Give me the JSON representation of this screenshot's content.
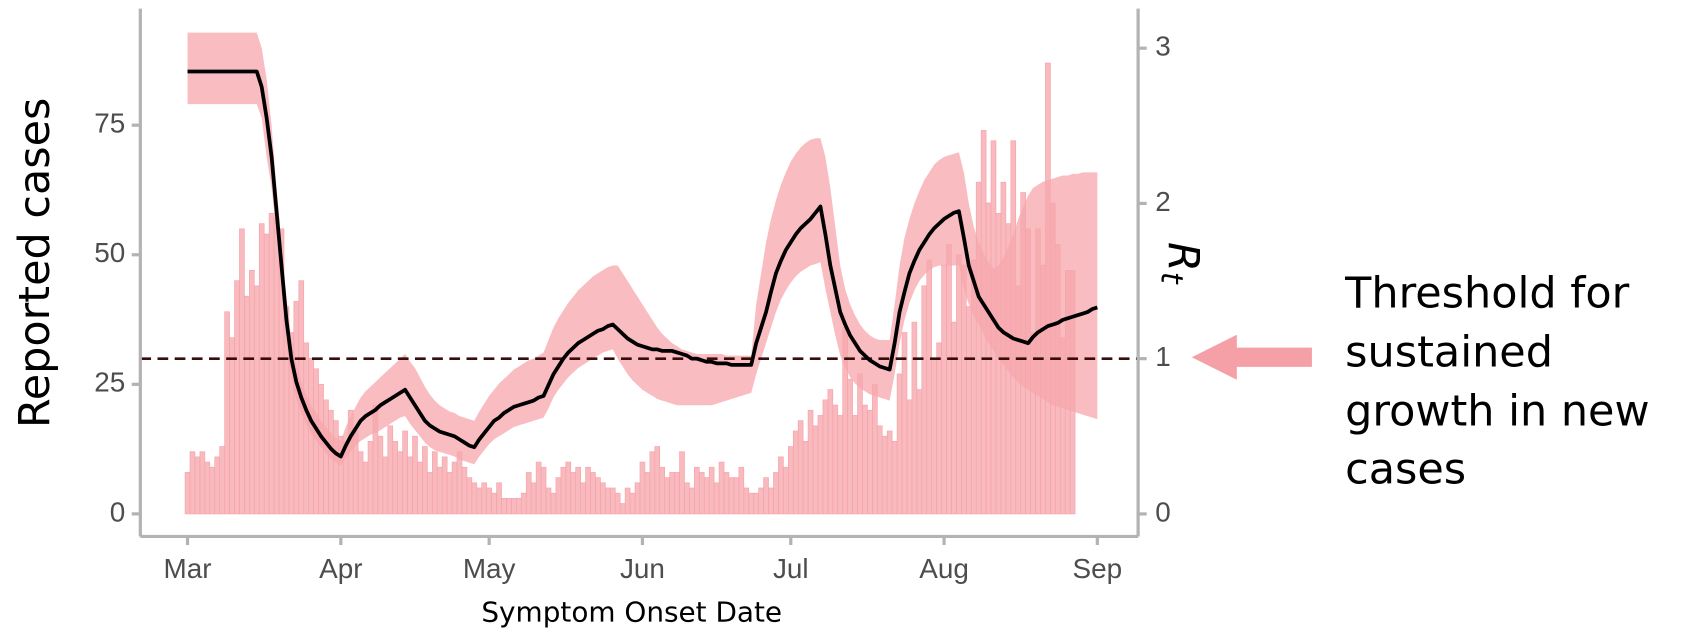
{
  "chart_data": {
    "type": "bar",
    "xlabel": "Symptom Onset Date",
    "ylabel": "Reported cases",
    "y2label": [
      "R",
      "t"
    ],
    "annotation": [
      "Threshold for",
      "sustained",
      "growth in new",
      "cases"
    ],
    "ylim": [
      -4.35,
      97.5
    ],
    "yticks": [
      0,
      25,
      50,
      75
    ],
    "y2lim": [
      -0.145,
      3.255
    ],
    "y2ticks": [
      0,
      1,
      2,
      3
    ],
    "threshold": 1,
    "categories": [
      "Mar",
      null,
      null,
      null,
      null,
      null,
      null,
      null,
      null,
      null,
      null,
      null,
      null,
      null,
      null,
      null,
      null,
      null,
      null,
      null,
      null,
      null,
      null,
      null,
      null,
      null,
      null,
      null,
      null,
      null,
      null,
      "Apr",
      null,
      null,
      null,
      null,
      null,
      null,
      null,
      null,
      null,
      null,
      null,
      null,
      null,
      null,
      null,
      null,
      null,
      null,
      null,
      null,
      null,
      null,
      null,
      null,
      null,
      null,
      null,
      null,
      null,
      "May",
      null,
      null,
      null,
      null,
      null,
      null,
      null,
      null,
      null,
      null,
      null,
      null,
      null,
      null,
      null,
      null,
      null,
      null,
      null,
      null,
      null,
      null,
      null,
      null,
      null,
      null,
      null,
      null,
      null,
      null,
      "Jun",
      null,
      null,
      null,
      null,
      null,
      null,
      null,
      null,
      null,
      null,
      null,
      null,
      null,
      null,
      null,
      null,
      null,
      null,
      null,
      null,
      null,
      null,
      null,
      null,
      null,
      null,
      null,
      null,
      null,
      "Jul",
      null,
      null,
      null,
      null,
      null,
      null,
      null,
      null,
      null,
      null,
      null,
      null,
      null,
      null,
      null,
      null,
      null,
      null,
      null,
      null,
      null,
      null,
      null,
      null,
      null,
      null,
      null,
      null,
      null,
      null,
      "Aug",
      null,
      null,
      null,
      null,
      null,
      null,
      null,
      null,
      null,
      null,
      null,
      null,
      null,
      null,
      null,
      null,
      null,
      null,
      null,
      null,
      null,
      null,
      null,
      null,
      null,
      null,
      null,
      null,
      null,
      null,
      "Sep"
    ],
    "series": [
      {
        "type": "bar",
        "color": "#f6a3a8",
        "values": [
          8,
          12,
          11,
          12,
          10,
          9,
          11,
          13,
          39,
          34,
          45,
          55,
          42,
          47,
          44,
          56,
          54,
          58,
          57,
          55,
          40,
          35,
          41,
          45,
          33,
          30,
          28,
          25,
          22,
          20,
          18,
          15,
          14,
          20,
          16,
          12,
          10,
          14,
          21,
          15,
          11,
          17,
          14,
          12,
          16,
          11,
          15,
          10,
          13,
          8,
          12,
          9,
          11,
          8,
          10,
          12,
          9,
          7,
          6,
          5,
          6,
          5,
          4,
          6,
          3,
          3,
          3,
          3,
          4,
          8,
          6,
          10,
          9,
          5,
          4,
          7,
          9,
          10,
          8,
          9,
          6,
          9,
          8,
          7,
          6,
          5,
          5,
          4,
          2,
          5,
          4,
          6,
          10,
          8,
          12,
          13,
          9,
          7,
          8,
          8,
          12,
          6,
          5,
          9,
          8,
          7,
          9,
          6,
          10,
          8,
          7,
          7,
          9,
          5,
          4,
          4,
          5,
          7,
          5,
          8,
          11,
          9,
          13,
          16,
          18,
          14,
          20,
          17,
          19,
          22,
          24,
          21,
          19,
          36,
          26,
          19,
          27,
          21,
          20,
          25,
          17,
          15,
          16,
          14,
          27,
          35,
          22,
          37,
          24,
          44,
          49,
          30,
          33,
          48,
          52,
          37,
          50,
          48,
          40,
          49,
          64,
          74,
          60,
          72,
          58,
          64,
          56,
          72,
          44,
          62,
          55,
          35,
          55,
          48,
          87,
          60,
          52,
          34,
          47,
          47,
          null,
          null,
          null,
          null,
          null
        ]
      },
      {
        "type": "line",
        "axis": "y2",
        "color": "#000000",
        "band_color": "#f7a7ac",
        "values": [
          2.85,
          2.85,
          2.85,
          2.85,
          2.85,
          2.85,
          2.85,
          2.85,
          2.85,
          2.85,
          2.85,
          2.85,
          2.85,
          2.85,
          2.85,
          2.75,
          2.55,
          2.3,
          1.95,
          1.6,
          1.25,
          1.0,
          0.85,
          0.75,
          0.67,
          0.6,
          0.55,
          0.5,
          0.46,
          0.42,
          0.39,
          0.37,
          0.44,
          0.5,
          0.55,
          0.6,
          0.63,
          0.65,
          0.67,
          0.7,
          0.72,
          0.74,
          0.76,
          0.78,
          0.8,
          0.75,
          0.7,
          0.65,
          0.6,
          0.57,
          0.55,
          0.53,
          0.52,
          0.51,
          0.5,
          0.48,
          0.46,
          0.44,
          0.43,
          0.48,
          0.52,
          0.56,
          0.6,
          0.62,
          0.65,
          0.67,
          0.69,
          0.7,
          0.71,
          0.72,
          0.73,
          0.75,
          0.76,
          0.83,
          0.9,
          0.95,
          1.0,
          1.04,
          1.07,
          1.1,
          1.12,
          1.14,
          1.16,
          1.18,
          1.19,
          1.21,
          1.22,
          1.19,
          1.16,
          1.13,
          1.11,
          1.09,
          1.08,
          1.07,
          1.06,
          1.06,
          1.05,
          1.05,
          1.05,
          1.04,
          1.03,
          1.02,
          1.0,
          1.0,
          0.99,
          0.98,
          0.98,
          0.97,
          0.97,
          0.97,
          0.96,
          0.96,
          0.96,
          0.96,
          0.96,
          1.1,
          1.2,
          1.3,
          1.43,
          1.55,
          1.63,
          1.7,
          1.75,
          1.8,
          1.84,
          1.87,
          1.9,
          1.94,
          1.98,
          1.8,
          1.6,
          1.45,
          1.3,
          1.22,
          1.15,
          1.1,
          1.05,
          1.02,
          0.99,
          0.97,
          0.95,
          0.94,
          0.93,
          1.1,
          1.3,
          1.43,
          1.55,
          1.63,
          1.7,
          1.75,
          1.8,
          1.84,
          1.87,
          1.9,
          1.92,
          1.94,
          1.95,
          1.78,
          1.6,
          1.5,
          1.4,
          1.35,
          1.3,
          1.25,
          1.2,
          1.17,
          1.15,
          1.13,
          1.12,
          1.11,
          1.1,
          1.14,
          1.17,
          1.19,
          1.21,
          1.22,
          1.23,
          1.25,
          1.26,
          1.27,
          1.28,
          1.29,
          1.3,
          1.32,
          1.33
        ],
        "upper": [
          3.1,
          3.1,
          3.1,
          3.1,
          3.1,
          3.1,
          3.1,
          3.1,
          3.1,
          3.1,
          3.1,
          3.1,
          3.1,
          3.1,
          3.1,
          3.0,
          2.8,
          2.5,
          2.1,
          1.75,
          1.4,
          1.12,
          0.96,
          0.85,
          0.77,
          0.7,
          0.65,
          0.6,
          0.56,
          0.52,
          0.49,
          0.47,
          0.56,
          0.63,
          0.69,
          0.75,
          0.79,
          0.82,
          0.85,
          0.88,
          0.91,
          0.94,
          0.97,
          1.0,
          1.03,
          0.98,
          0.94,
          0.88,
          0.82,
          0.77,
          0.73,
          0.7,
          0.68,
          0.66,
          0.65,
          0.63,
          0.62,
          0.61,
          0.6,
          0.66,
          0.71,
          0.76,
          0.8,
          0.84,
          0.87,
          0.9,
          0.93,
          0.95,
          0.97,
          0.99,
          1.0,
          1.02,
          1.04,
          1.12,
          1.2,
          1.26,
          1.31,
          1.36,
          1.4,
          1.44,
          1.47,
          1.5,
          1.53,
          1.55,
          1.57,
          1.59,
          1.6,
          1.6,
          1.55,
          1.5,
          1.45,
          1.4,
          1.35,
          1.3,
          1.25,
          1.2,
          1.16,
          1.13,
          1.1,
          1.08,
          1.06,
          1.05,
          1.04,
          1.03,
          1.03,
          1.03,
          1.03,
          1.03,
          1.03,
          1.02,
          1.02,
          1.02,
          1.02,
          1.02,
          1.02,
          1.35,
          1.55,
          1.75,
          1.9,
          2.02,
          2.12,
          2.2,
          2.27,
          2.32,
          2.36,
          2.39,
          2.41,
          2.42,
          2.42,
          2.3,
          2.1,
          1.85,
          1.6,
          1.45,
          1.35,
          1.28,
          1.22,
          1.18,
          1.15,
          1.13,
          1.12,
          1.12,
          1.12,
          1.35,
          1.6,
          1.78,
          1.9,
          2.0,
          2.08,
          2.15,
          2.2,
          2.25,
          2.28,
          2.3,
          2.31,
          2.32,
          2.33,
          2.2,
          2.0,
          1.85,
          1.75,
          1.68,
          1.62,
          1.58,
          1.6,
          1.65,
          1.72,
          1.8,
          1.9,
          1.98,
          2.05,
          2.1,
          2.12,
          2.14,
          2.15,
          2.16,
          2.17,
          2.18,
          2.18,
          2.19,
          2.19,
          2.2,
          2.2,
          2.2,
          2.2
        ],
        "lower": [
          2.64,
          2.64,
          2.64,
          2.64,
          2.64,
          2.64,
          2.64,
          2.64,
          2.64,
          2.64,
          2.64,
          2.64,
          2.64,
          2.64,
          2.64,
          2.55,
          2.3,
          2.1,
          1.8,
          1.45,
          1.1,
          0.88,
          0.74,
          0.65,
          0.58,
          0.52,
          0.47,
          0.43,
          0.39,
          0.36,
          0.33,
          0.31,
          0.36,
          0.4,
          0.44,
          0.47,
          0.49,
          0.51,
          0.52,
          0.54,
          0.56,
          0.58,
          0.6,
          0.62,
          0.63,
          0.58,
          0.54,
          0.5,
          0.46,
          0.43,
          0.41,
          0.4,
          0.39,
          0.38,
          0.37,
          0.35,
          0.34,
          0.33,
          0.32,
          0.37,
          0.41,
          0.45,
          0.48,
          0.5,
          0.52,
          0.54,
          0.56,
          0.57,
          0.58,
          0.59,
          0.6,
          0.61,
          0.62,
          0.68,
          0.75,
          0.8,
          0.84,
          0.88,
          0.91,
          0.94,
          0.96,
          0.98,
          1.0,
          1.02,
          1.04,
          1.05,
          1.06,
          1.0,
          0.95,
          0.9,
          0.86,
          0.83,
          0.8,
          0.78,
          0.76,
          0.74,
          0.73,
          0.72,
          0.71,
          0.7,
          0.7,
          0.7,
          0.7,
          0.7,
          0.7,
          0.7,
          0.7,
          0.71,
          0.72,
          0.73,
          0.74,
          0.75,
          0.76,
          0.77,
          0.78,
          0.9,
          1.0,
          1.1,
          1.2,
          1.3,
          1.38,
          1.44,
          1.49,
          1.53,
          1.56,
          1.58,
          1.6,
          1.61,
          1.62,
          1.45,
          1.3,
          1.15,
          1.02,
          0.94,
          0.88,
          0.84,
          0.81,
          0.79,
          0.77,
          0.76,
          0.75,
          0.74,
          0.73,
          0.9,
          1.1,
          1.25,
          1.36,
          1.44,
          1.5,
          1.54,
          1.57,
          1.59,
          1.6,
          1.6,
          1.6,
          1.6,
          1.6,
          1.45,
          1.35,
          1.28,
          1.22,
          1.16,
          1.1,
          1.05,
          1.0,
          0.96,
          0.92,
          0.88,
          0.85,
          0.82,
          0.8,
          0.78,
          0.76,
          0.74,
          0.72,
          0.7,
          0.69,
          0.68,
          0.67,
          0.66,
          0.65,
          0.64,
          0.63,
          0.62,
          0.61
        ]
      }
    ]
  }
}
